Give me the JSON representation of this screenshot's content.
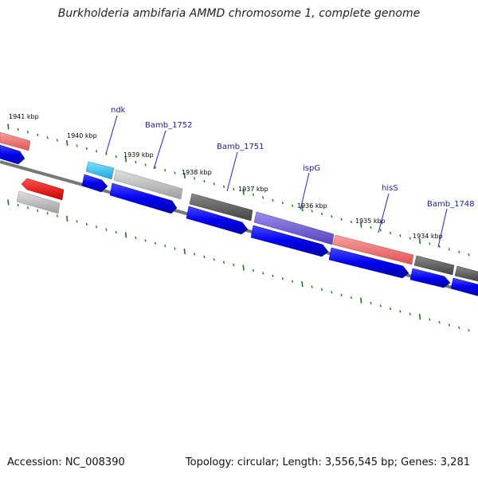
{
  "header": {
    "title": "Burkholderia ambifaria AMMD chromosome 1, complete genome"
  },
  "footer": {
    "accession": "Accession: NC_008390",
    "summary": "Topology: circular; Length: 3,556,545 bp; Genes: 3,281"
  },
  "map": {
    "kbp_labels": [
      "1941 kbp",
      "1940 kbp",
      "1939 kbp",
      "1938 kbp",
      "1937 kbp",
      "1936 kbp",
      "1935 kbp",
      "1934 kbp"
    ],
    "gene_labels": [
      "ndk",
      "Bamb_1752",
      "Bamb_1751",
      "ispG",
      "hisS",
      "Bamb_1748"
    ],
    "colors": {
      "backbone": "#777777",
      "tick": "#1a7a1a",
      "cds_blue": "#0000ee",
      "cyan": "#22bbee",
      "light_gray": "#bdbdbd",
      "dark_gray": "#555555",
      "pink": "#ee7777",
      "purple": "#6a5acd",
      "red": "#ee0000"
    }
  }
}
